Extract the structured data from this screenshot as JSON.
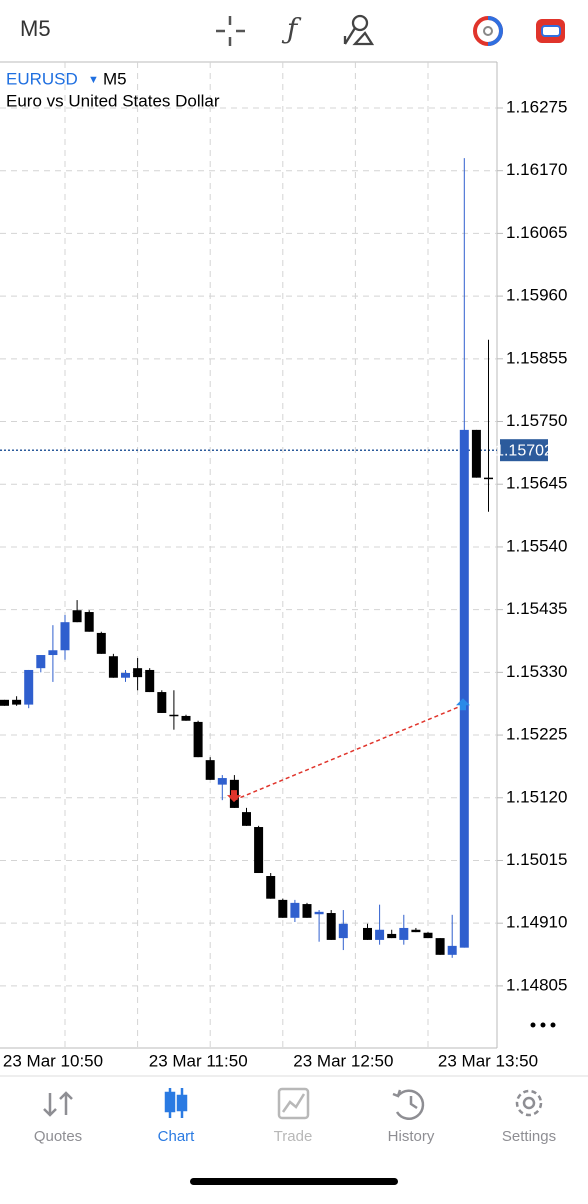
{
  "toolbar": {
    "timeframe": "M5"
  },
  "chart_data": {
    "type": "candlestick",
    "symbol": "EURUSD",
    "timeframe": "M5",
    "title": "Euro vs United States Dollar",
    "categories": [
      null,
      null,
      null,
      null,
      null,
      "23 Mar 10:50",
      null,
      null,
      null,
      null,
      null,
      null,
      null,
      null,
      null,
      null,
      null,
      "23 Mar 11:50",
      null,
      null,
      null,
      null,
      null,
      null,
      null,
      null,
      null,
      null,
      null,
      "23 Mar 12:50",
      null,
      null,
      null,
      null,
      null,
      null,
      null,
      null,
      null,
      null,
      null,
      "23 Mar 13:50"
    ],
    "series": [
      {
        "name": "open",
        "values": [
          1.15284,
          1.15284,
          1.15276,
          1.15337,
          1.15359,
          1.15367,
          1.15434,
          1.15431,
          1.15396,
          1.15357,
          1.15321,
          1.15337,
          1.15334,
          1.15297,
          1.15259,
          1.15257,
          1.15247,
          1.15183,
          1.15142,
          1.1515,
          1.15096,
          1.15071,
          1.14989,
          1.14949,
          1.14919,
          1.14942,
          1.14925,
          1.14927,
          1.14885,
          null,
          1.14902,
          1.14882,
          1.14892,
          1.14882,
          1.14899,
          1.14894,
          1.14885,
          1.14857,
          1.14869,
          1.15736,
          1.15656,
          null
        ]
      },
      {
        "name": "high",
        "values": [
          1.15284,
          1.1529,
          1.15334,
          1.15359,
          1.15409,
          1.15426,
          1.15451,
          1.15434,
          1.15398,
          1.15361,
          1.15334,
          1.15354,
          1.15337,
          1.153,
          1.153,
          1.15259,
          1.15249,
          1.15188,
          1.15158,
          1.15158,
          1.15103,
          1.15073,
          1.14994,
          1.14951,
          1.14949,
          1.14944,
          1.14932,
          1.14932,
          1.14932,
          null,
          1.14909,
          1.14941,
          1.14899,
          1.14924,
          1.14902,
          1.14895,
          1.14885,
          1.14924,
          1.16191,
          1.15736,
          1.15887,
          null
        ]
      },
      {
        "name": "low",
        "values": [
          1.15274,
          1.15274,
          1.1527,
          1.1533,
          1.15314,
          1.15351,
          1.15414,
          1.15398,
          1.15361,
          1.15321,
          1.15314,
          1.153,
          1.15297,
          1.15262,
          1.15234,
          1.15249,
          1.15188,
          1.1515,
          1.15116,
          1.15103,
          1.15073,
          1.14994,
          1.14951,
          1.14919,
          1.14912,
          1.14919,
          1.14879,
          1.14882,
          1.14865,
          null,
          1.14882,
          1.14874,
          1.14885,
          1.14874,
          1.14895,
          1.14885,
          1.14857,
          1.14852,
          1.14869,
          1.15656,
          1.15599,
          null
        ]
      },
      {
        "name": "close",
        "values": [
          1.15274,
          1.15276,
          1.15334,
          1.15359,
          1.15367,
          1.15414,
          1.15414,
          1.15398,
          1.15361,
          1.15321,
          1.15329,
          1.15322,
          1.15297,
          1.15262,
          1.15257,
          1.15249,
          1.15188,
          1.1515,
          1.15153,
          1.15103,
          1.15073,
          1.14994,
          1.14951,
          1.14919,
          1.14944,
          1.14919,
          1.14929,
          1.14882,
          1.14909,
          null,
          1.14882,
          1.14899,
          1.14885,
          1.14902,
          1.14895,
          1.14885,
          1.14857,
          1.14872,
          1.15736,
          1.15656,
          1.15654,
          null
        ]
      }
    ],
    "up_color": "#2f5fce",
    "down_color": "#000000",
    "current_price": 1.15702,
    "current_price_color": "#2c5b9c",
    "trade": {
      "sell": 1.15116,
      "buy": 1.15275,
      "color": "#e0342b"
    },
    "ylim": [
      1.14701,
      1.16352
    ],
    "yticks": [
      1.16275,
      {
        "value": 1.1617,
        "label": "1.16170"
      },
      1.16065,
      {
        "value": 1.1596,
        "label": "1.15960"
      },
      1.15855,
      {
        "value": 1.1575,
        "label": "1.15750"
      },
      1.15645,
      {
        "value": 1.1554,
        "label": "1.15540"
      },
      1.15435,
      {
        "value": 1.1533,
        "label": "1.15330"
      },
      1.15225,
      {
        "value": 1.1512,
        "label": "1.15120"
      },
      1.15015,
      {
        "value": 1.1491,
        "label": "1.14910"
      },
      1.14805
    ],
    "grid": true
  },
  "tabs": [
    "Quotes",
    "Chart",
    "Trade",
    "History",
    "Settings"
  ]
}
